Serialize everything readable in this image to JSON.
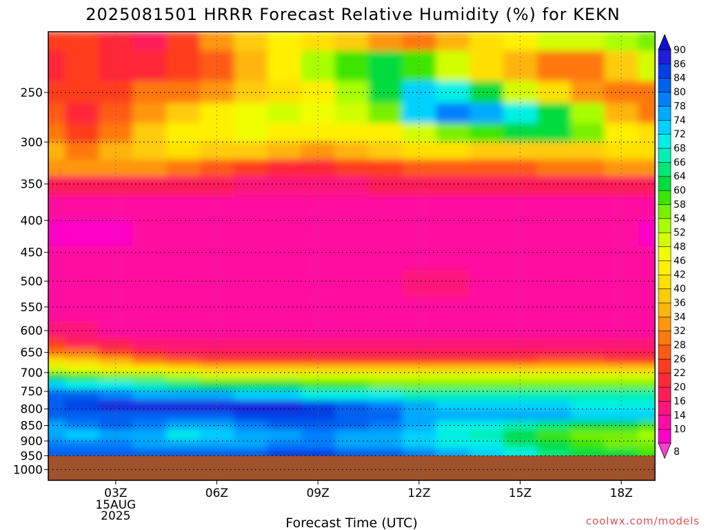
{
  "chart_data": {
    "type": "heatmap",
    "title": "2025081501 HRRR Forecast Relative Humidity (%) for KEKN",
    "xlabel": "Forecast Time (UTC)",
    "ylabel": "",
    "x_ticks": [
      {
        "hour": 3,
        "label": "03Z",
        "sub": [
          "15AUG",
          "2025"
        ]
      },
      {
        "hour": 6,
        "label": "06Z",
        "sub": []
      },
      {
        "hour": 9,
        "label": "09Z",
        "sub": []
      },
      {
        "hour": 12,
        "label": "12Z",
        "sub": []
      },
      {
        "hour": 15,
        "label": "15Z",
        "sub": []
      },
      {
        "hour": 18,
        "label": "18Z",
        "sub": []
      }
    ],
    "xlim_hours": [
      1,
      19
    ],
    "y_ticks": [
      250,
      300,
      350,
      400,
      450,
      500,
      550,
      600,
      650,
      700,
      750,
      800,
      850,
      900,
      950,
      1000
    ],
    "ylim_hPa": [
      200,
      1040
    ],
    "y_scale": "log-pressure",
    "surface_pressure_hPa": 950,
    "surface_color": "#a0522d",
    "grid": true,
    "colorbar": {
      "levels": [
        8,
        10,
        14,
        16,
        20,
        22,
        26,
        28,
        32,
        34,
        36,
        40,
        42,
        46,
        48,
        52,
        54,
        58,
        60,
        64,
        66,
        68,
        72,
        74,
        78,
        80,
        84,
        86,
        90
      ],
      "colors": [
        "#ff00c8",
        "#ff0ca0",
        "#ff147c",
        "#ff1e5a",
        "#ff2838",
        "#ff3c1e",
        "#ff5a14",
        "#ff7810",
        "#ff960c",
        "#ffb40a",
        "#ffcc08",
        "#ffe000",
        "#fff000",
        "#f0ff00",
        "#d2ff00",
        "#a8ff00",
        "#78f000",
        "#3ce600",
        "#00dc3c",
        "#00e878",
        "#00f0b4",
        "#00f0e6",
        "#00d2ff",
        "#00aaff",
        "#0080ff",
        "#0060f0",
        "#0040e6",
        "#1e1edc"
      ],
      "under_color": "#ff40d0",
      "over_color": "#1010d0",
      "placement": "right"
    },
    "profiles": [
      {
        "p": 200,
        "rh": [
          22,
          24,
          20,
          18,
          24,
          32,
          38,
          42,
          40,
          36,
          32,
          30,
          34,
          40,
          44,
          48,
          50,
          52,
          54
        ]
      },
      {
        "p": 230,
        "rh": [
          20,
          22,
          20,
          20,
          22,
          26,
          34,
          44,
          52,
          58,
          62,
          58,
          48,
          40,
          34,
          30,
          30,
          36,
          48
        ]
      },
      {
        "p": 250,
        "rh": [
          22,
          22,
          24,
          28,
          30,
          32,
          36,
          40,
          44,
          52,
          62,
          72,
          70,
          60,
          50,
          40,
          32,
          28,
          30
        ]
      },
      {
        "p": 270,
        "rh": [
          26,
          20,
          26,
          32,
          38,
          42,
          46,
          48,
          46,
          48,
          56,
          72,
          78,
          74,
          68,
          62,
          52,
          34,
          30
        ]
      },
      {
        "p": 290,
        "rh": [
          28,
          22,
          30,
          38,
          42,
          44,
          46,
          44,
          42,
          42,
          44,
          50,
          56,
          58,
          60,
          62,
          54,
          44,
          40
        ]
      },
      {
        "p": 310,
        "rh": [
          34,
          30,
          34,
          38,
          40,
          38,
          36,
          34,
          32,
          34,
          38,
          40,
          40,
          38,
          36,
          36,
          38,
          40,
          40
        ]
      },
      {
        "p": 330,
        "rh": [
          32,
          32,
          32,
          32,
          30,
          26,
          22,
          20,
          20,
          22,
          24,
          26,
          26,
          26,
          26,
          28,
          30,
          32,
          32
        ]
      },
      {
        "p": 350,
        "rh": [
          18,
          18,
          18,
          18,
          18,
          16,
          14,
          14,
          14,
          14,
          16,
          16,
          18,
          18,
          18,
          18,
          18,
          18,
          18
        ]
      },
      {
        "p": 380,
        "rh": [
          12,
          12,
          12,
          12,
          12,
          12,
          12,
          12,
          12,
          12,
          12,
          12,
          12,
          12,
          12,
          12,
          12,
          12,
          12
        ]
      },
      {
        "p": 420,
        "rh": [
          9,
          9,
          9,
          10,
          10,
          10,
          10,
          10,
          10,
          10,
          10,
          10,
          10,
          10,
          11,
          11,
          10,
          10,
          9
        ]
      },
      {
        "p": 460,
        "rh": [
          11,
          11,
          11,
          11,
          11,
          11,
          12,
          11,
          11,
          12,
          12,
          12,
          12,
          12,
          12,
          12,
          11,
          11,
          11
        ]
      },
      {
        "p": 500,
        "rh": [
          13,
          12,
          12,
          12,
          12,
          13,
          13,
          13,
          13,
          13,
          13,
          14,
          14,
          13,
          13,
          13,
          13,
          13,
          13
        ]
      },
      {
        "p": 560,
        "rh": [
          12,
          12,
          12,
          12,
          12,
          12,
          12,
          12,
          12,
          12,
          12,
          13,
          13,
          12,
          12,
          12,
          12,
          12,
          12
        ]
      },
      {
        "p": 600,
        "rh": [
          14,
          14,
          13,
          13,
          13,
          13,
          13,
          13,
          13,
          13,
          13,
          13,
          13,
          13,
          13,
          13,
          13,
          13,
          13
        ]
      },
      {
        "p": 630,
        "rh": [
          22,
          18,
          16,
          15,
          14,
          14,
          14,
          14,
          14,
          14,
          14,
          14,
          14,
          14,
          14,
          14,
          14,
          14,
          14
        ]
      },
      {
        "p": 650,
        "rh": [
          30,
          28,
          24,
          20,
          18,
          17,
          16,
          16,
          16,
          16,
          16,
          16,
          16,
          17,
          18,
          18,
          18,
          18,
          18
        ]
      },
      {
        "p": 670,
        "rh": [
          40,
          38,
          34,
          30,
          26,
          24,
          22,
          22,
          22,
          22,
          22,
          22,
          24,
          24,
          24,
          26,
          26,
          24,
          24
        ]
      },
      {
        "p": 690,
        "rh": [
          48,
          46,
          44,
          42,
          40,
          38,
          36,
          36,
          36,
          36,
          36,
          36,
          38,
          38,
          38,
          38,
          38,
          36,
          36
        ]
      },
      {
        "p": 710,
        "rh": [
          60,
          58,
          56,
          54,
          52,
          50,
          50,
          48,
          48,
          48,
          48,
          48,
          48,
          48,
          48,
          48,
          48,
          48,
          48
        ]
      },
      {
        "p": 730,
        "rh": [
          72,
          70,
          68,
          66,
          64,
          62,
          60,
          60,
          58,
          58,
          56,
          56,
          56,
          56,
          56,
          56,
          56,
          56,
          56
        ]
      },
      {
        "p": 760,
        "rh": [
          80,
          80,
          78,
          76,
          74,
          74,
          72,
          72,
          70,
          70,
          68,
          66,
          66,
          66,
          66,
          66,
          66,
          66,
          66
        ]
      },
      {
        "p": 790,
        "rh": [
          82,
          84,
          86,
          88,
          88,
          88,
          86,
          86,
          84,
          82,
          78,
          74,
          72,
          72,
          72,
          72,
          70,
          70,
          70
        ]
      },
      {
        "p": 820,
        "rh": [
          80,
          82,
          82,
          80,
          80,
          82,
          84,
          84,
          84,
          82,
          80,
          76,
          74,
          74,
          74,
          74,
          72,
          72,
          72
        ]
      },
      {
        "p": 850,
        "rh": [
          76,
          78,
          80,
          78,
          76,
          76,
          78,
          80,
          82,
          80,
          78,
          74,
          70,
          68,
          66,
          64,
          62,
          60,
          58
        ]
      },
      {
        "p": 880,
        "rh": [
          74,
          72,
          74,
          74,
          70,
          72,
          74,
          76,
          78,
          76,
          74,
          72,
          70,
          66,
          62,
          58,
          56,
          54,
          52
        ]
      },
      {
        "p": 910,
        "rh": [
          78,
          78,
          78,
          76,
          76,
          76,
          76,
          78,
          78,
          76,
          74,
          72,
          70,
          68,
          64,
          62,
          58,
          56,
          54
        ]
      },
      {
        "p": 940,
        "rh": [
          80,
          82,
          82,
          82,
          82,
          82,
          82,
          84,
          84,
          82,
          80,
          78,
          74,
          72,
          68,
          64,
          62,
          60,
          58
        ]
      }
    ]
  },
  "credit": "coolwx.com/models"
}
